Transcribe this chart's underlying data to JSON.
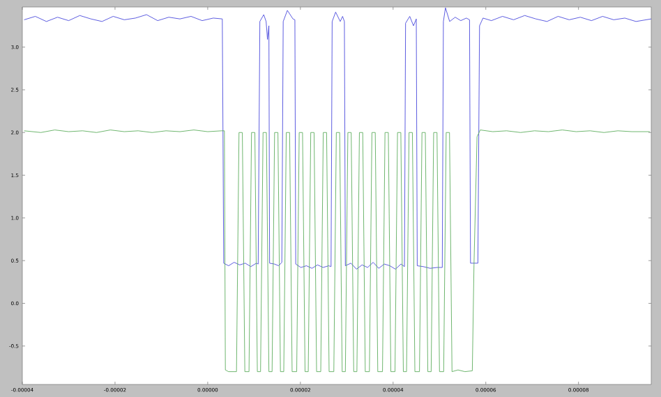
{
  "chart_data": {
    "type": "line",
    "xlim": [
      -4e-05,
      9.57e-05
    ],
    "ylim": [
      -0.95,
      3.47
    ],
    "xticks": [
      {
        "value": -4e-05,
        "label": "-0.00004"
      },
      {
        "value": -2e-05,
        "label": "-0.00002"
      },
      {
        "value": 0,
        "label": "0.00000"
      },
      {
        "value": 2e-05,
        "label": "0.00002"
      },
      {
        "value": 4e-05,
        "label": "0.00004"
      },
      {
        "value": 6e-05,
        "label": "0.00006"
      },
      {
        "value": 8e-05,
        "label": "0.00008"
      }
    ],
    "yticks": [
      {
        "value": -0.5,
        "label": "-0.5"
      },
      {
        "value": 0,
        "label": "0.0"
      },
      {
        "value": 0.5,
        "label": "0.5"
      },
      {
        "value": 1,
        "label": "1.0"
      },
      {
        "value": 1.5,
        "label": "1.5"
      },
      {
        "value": 2,
        "label": "2.0"
      },
      {
        "value": 2.5,
        "label": "2.5"
      },
      {
        "value": 3,
        "label": "3.0"
      }
    ],
    "series": [
      {
        "color": "#4b4bdc",
        "x": [
          -3.96e-05,
          -3.72e-05,
          -3.48e-05,
          -3.24e-05,
          -3e-05,
          -2.76e-05,
          -2.52e-05,
          -2.28e-05,
          -2.04e-05,
          -1.8e-05,
          -1.56e-05,
          -1.32e-05,
          -1.08e-05,
          -8.4e-06,
          -6e-06,
          -3.6e-06,
          -1.2e-06,
          1.2e-06,
          3.15e-06,
          3.45e-06,
          4.5e-06,
          5.7e-06,
          6.9e-06,
          8.1e-06,
          9.3e-06,
          1.05e-05,
          1.089e-05,
          1.125e-05,
          1.209e-05,
          1.26e-05,
          1.29e-05,
          1.32e-05,
          1.335e-05,
          1.44e-05,
          1.53e-05,
          1.599e-05,
          1.629e-05,
          1.719e-05,
          1.839e-05,
          1.881e-05,
          1.899e-05,
          2.01e-05,
          2.13e-05,
          2.25e-05,
          2.37e-05,
          2.49e-05,
          2.61e-05,
          2.661e-05,
          2.685e-05,
          2.76e-05,
          2.859e-05,
          2.91e-05,
          2.949e-05,
          2.97e-05,
          3.09e-05,
          3.21e-05,
          3.33e-05,
          3.45e-05,
          3.57e-05,
          3.69e-05,
          3.81e-05,
          3.93e-05,
          4.05e-05,
          4.17e-05,
          4.245e-05,
          4.269e-05,
          4.359e-05,
          4.44e-05,
          4.5e-05,
          4.521e-05,
          4.65e-05,
          4.8e-05,
          4.95e-05,
          5.061e-05,
          5.085e-05,
          5.13e-05,
          5.22e-05,
          5.34e-05,
          5.46e-05,
          5.58e-05,
          5.649e-05,
          5.67e-05,
          5.829e-05,
          5.865e-05,
          5.94e-05,
          6.12e-05,
          6.36e-05,
          6.6e-05,
          6.84e-05,
          7.08e-05,
          7.32e-05,
          7.56e-05,
          7.8e-05,
          8.04e-05,
          8.28e-05,
          8.52e-05,
          8.76e-05,
          9e-05,
          9.24e-05,
          9.57e-05
        ],
        "values": [
          3.32,
          3.36,
          3.3,
          3.35,
          3.31,
          3.37,
          3.33,
          3.3,
          3.36,
          3.32,
          3.34,
          3.38,
          3.31,
          3.35,
          3.33,
          3.36,
          3.31,
          3.34,
          3.33,
          0.47,
          0.44,
          0.48,
          0.45,
          0.47,
          0.43,
          0.47,
          0.46,
          3.3,
          3.38,
          3.3,
          3.09,
          3.25,
          0.47,
          0.46,
          0.44,
          0.48,
          3.3,
          3.43,
          3.33,
          3.32,
          0.46,
          0.42,
          0.44,
          0.41,
          0.45,
          0.42,
          0.44,
          0.43,
          3.3,
          3.41,
          3.3,
          3.36,
          3.3,
          0.44,
          0.47,
          0.4,
          0.45,
          0.42,
          0.48,
          0.41,
          0.46,
          0.44,
          0.4,
          0.46,
          0.43,
          3.28,
          3.36,
          3.25,
          3.33,
          0.44,
          0.43,
          0.41,
          0.42,
          0.42,
          3.3,
          3.46,
          3.3,
          3.35,
          3.31,
          3.34,
          3.32,
          0.47,
          0.47,
          3.25,
          3.34,
          3.31,
          3.36,
          3.32,
          3.37,
          3.33,
          3.3,
          3.36,
          3.32,
          3.35,
          3.31,
          3.36,
          3.32,
          3.34,
          3.3,
          3.33
        ]
      },
      {
        "color": "#5fae5f",
        "x": [
          -3.96e-05,
          -3.6e-05,
          -3.3e-05,
          -3e-05,
          -2.7e-05,
          -2.4e-05,
          -2.1e-05,
          -1.8e-05,
          -1.5e-05,
          -1.2e-05,
          -9e-06,
          -6e-06,
          -3e-06,
          0,
          3e-06,
          3.6e-06,
          3.81e-06,
          4.5e-06,
          6.21e-06,
          6.75e-06,
          7.47e-06,
          8.01e-06,
          8.91e-06,
          9.45e-06,
          1.017e-05,
          1.071e-05,
          1.14e-05,
          1.194e-05,
          1.266e-05,
          1.32e-05,
          1.389e-05,
          1.443e-05,
          1.515e-05,
          1.569e-05,
          1.641e-05,
          1.695e-05,
          1.767e-05,
          1.821e-05,
          1.92e-05,
          1.974e-05,
          2.046e-05,
          2.1e-05,
          2.169e-05,
          2.223e-05,
          2.295e-05,
          2.349e-05,
          2.439e-05,
          2.493e-05,
          2.565e-05,
          2.619e-05,
          2.721e-05,
          2.775e-05,
          2.847e-05,
          2.901e-05,
          2.97e-05,
          3.024e-05,
          3.096e-05,
          3.15e-05,
          3.219e-05,
          3.273e-05,
          3.345e-05,
          3.399e-05,
          3.489e-05,
          3.543e-05,
          3.615e-05,
          3.669e-05,
          3.771e-05,
          3.825e-05,
          3.897e-05,
          3.951e-05,
          4.041e-05,
          4.095e-05,
          4.167e-05,
          4.221e-05,
          4.29e-05,
          4.344e-05,
          4.416e-05,
          4.47e-05,
          4.569e-05,
          4.623e-05,
          4.695e-05,
          4.749e-05,
          4.821e-05,
          4.875e-05,
          4.947e-05,
          5.001e-05,
          5.091e-05,
          5.145e-05,
          5.217e-05,
          5.271e-05,
          5.4e-05,
          5.55e-05,
          5.709e-05,
          5.745e-05,
          5.811e-05,
          5.88e-05,
          6.15e-05,
          6.45e-05,
          6.75e-05,
          7.05e-05,
          7.35e-05,
          7.65e-05,
          7.95e-05,
          8.25e-05,
          8.55e-05,
          8.85e-05,
          9.15e-05,
          9.54e-05
        ],
        "values": [
          2.02,
          2.0,
          2.03,
          2.01,
          2.02,
          2.0,
          2.03,
          2.01,
          2.02,
          2.0,
          2.02,
          2.01,
          2.03,
          2.01,
          2.02,
          2.02,
          -0.78,
          -0.8,
          -0.8,
          2.0,
          2.0,
          -0.8,
          -0.8,
          2.0,
          2.0,
          -0.8,
          -0.8,
          2.0,
          2.0,
          -0.8,
          -0.8,
          2.0,
          2.0,
          -0.8,
          -0.8,
          2.0,
          2.0,
          -0.8,
          -0.8,
          2.0,
          2.0,
          -0.8,
          -0.8,
          2.0,
          2.0,
          -0.8,
          -0.8,
          2.0,
          2.0,
          -0.8,
          -0.8,
          2.0,
          2.0,
          -0.8,
          -0.8,
          2.0,
          2.0,
          -0.8,
          -0.8,
          2.0,
          2.0,
          -0.8,
          -0.8,
          2.0,
          2.0,
          -0.8,
          -0.8,
          2.0,
          2.0,
          -0.8,
          -0.8,
          2.0,
          2.0,
          -0.8,
          -0.8,
          2.0,
          2.0,
          -0.8,
          -0.8,
          2.0,
          2.0,
          -0.8,
          -0.8,
          2.0,
          2.0,
          -0.8,
          -0.8,
          2.0,
          2.0,
          -0.8,
          -0.78,
          -0.8,
          -0.79,
          0.45,
          1.95,
          2.03,
          2.01,
          2.02,
          2.0,
          2.02,
          2.01,
          2.03,
          2.01,
          2.02,
          2.0,
          2.02,
          2.01,
          2.01
        ]
      }
    ]
  }
}
